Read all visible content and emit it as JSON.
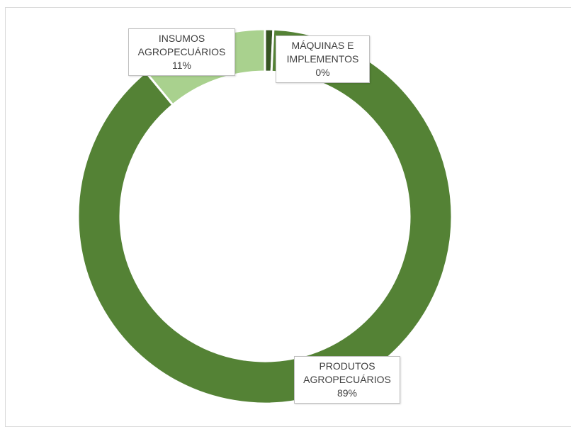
{
  "chart_data": {
    "type": "pie",
    "variant": "donut",
    "title": "",
    "legend": "none",
    "categories": [
      "PRODUTOS AGROPECUÁRIOS",
      "INSUMOS AGROPECUÁRIOS",
      "MÁQUINAS E IMPLEMENTOS"
    ],
    "values": [
      89,
      11,
      0
    ],
    "unit": "%",
    "colors": [
      "#548235",
      "#a9d18e",
      "#375623"
    ],
    "data_labels": [
      {
        "line1": "PRODUTOS",
        "line2": "AGROPECUÁRIOS",
        "value": "89%"
      },
      {
        "line1": "INSUMOS",
        "line2": "AGROPECUÁRIOS",
        "value": "11%"
      },
      {
        "line1": "MÁQUINAS E",
        "line2": "IMPLEMENTOS",
        "value": "0%"
      }
    ]
  }
}
